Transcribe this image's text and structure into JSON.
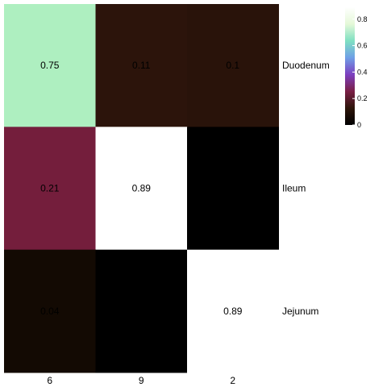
{
  "chart_data": {
    "type": "heatmap",
    "title": "",
    "xlabel": "",
    "ylabel": "",
    "columns": [
      "6",
      "9",
      "2"
    ],
    "rows": [
      "Duodenum",
      "Ileum",
      "Jejunum"
    ],
    "values": [
      [
        0.75,
        0.11,
        0.1
      ],
      [
        0.21,
        0.89,
        0.0
      ],
      [
        0.04,
        0.0,
        0.89
      ]
    ],
    "cell_labels": [
      [
        "0.75",
        "0.11",
        "0.1"
      ],
      [
        "0.21",
        "0.89",
        ""
      ],
      [
        "0.04",
        "",
        "0.89"
      ]
    ],
    "colorbar": {
      "range": [
        0,
        0.89
      ],
      "ticks": [
        0,
        0.2,
        0.4,
        0.6,
        0.8
      ],
      "tick_labels": [
        "0",
        "0.2",
        "0.4",
        "0.6",
        "0.8"
      ]
    },
    "colors": {
      "0.0": "#000000",
      "0.04": "#130a03",
      "0.1": "#29130a",
      "0.11": "#2c140b",
      "0.21": "#741e3c",
      "0.75": "#aeefc0",
      "0.89": "#ffffff"
    },
    "colorscale_stops": [
      "#000000",
      "#2d150a",
      "#7a1f45",
      "#7c3fc0",
      "#6f9fe6",
      "#7fe0c2",
      "#e5f8d8",
      "#ffffff"
    ],
    "row_label_position": "right",
    "column_label_position": "bottom",
    "legend_position": "top-right"
  }
}
